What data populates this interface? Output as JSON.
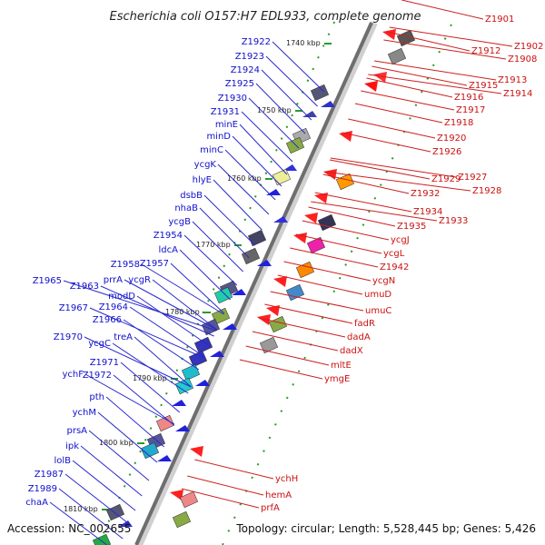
{
  "title": "Escherichia coli O157:H7 EDL933, complete genome",
  "footer": {
    "accession": "Accession: NC_002655",
    "summary": "Topology: circular; Length: 5,528,445 bp; Genes: 5,426"
  },
  "ticks": [
    "1740 kbp",
    "1750 kbp",
    "1760 kbp",
    "1770 kbp",
    "1780 kbp",
    "1790 kbp",
    "1800 kbp",
    "1810 kbp"
  ],
  "left_labels": [
    "Z1922",
    "Z1923",
    "Z1924",
    "Z1925",
    "Z1930",
    "Z1931",
    "minE",
    "minD",
    "minC",
    "ycgK",
    "hlyE",
    "dsbB",
    "nhaB",
    "ycgB",
    "Z1954",
    "ldcA",
    "Z1958",
    "Z1957",
    "prrA",
    "ycgR",
    "Z1965",
    "Z1963",
    "modD",
    "Z1967",
    "Z1964",
    "Z1966",
    "treA",
    "Z1970",
    "ycgC",
    "Z1971",
    "ychF",
    "Z1972",
    "pth",
    "ychM",
    "prsA",
    "ipk",
    "lolB",
    "Z1987",
    "Z1989",
    "chaA"
  ],
  "right_labels": [
    "Z1901",
    "Z1902",
    "Z1912",
    "Z1908",
    "Z1913",
    "Z1914",
    "Z1915",
    "Z1916",
    "Z1917",
    "Z1918",
    "Z1920",
    "Z1926",
    "Z1927",
    "Z1928",
    "Z1929",
    "Z1932",
    "Z1934",
    "Z1933",
    "Z1935",
    "ycgJ",
    "ycgL",
    "Z1942",
    "ycgN",
    "umuD",
    "umuC",
    "fadR",
    "dadA",
    "dadX",
    "mltE",
    "ymgE",
    "ychH",
    "hemA",
    "prfA"
  ]
}
